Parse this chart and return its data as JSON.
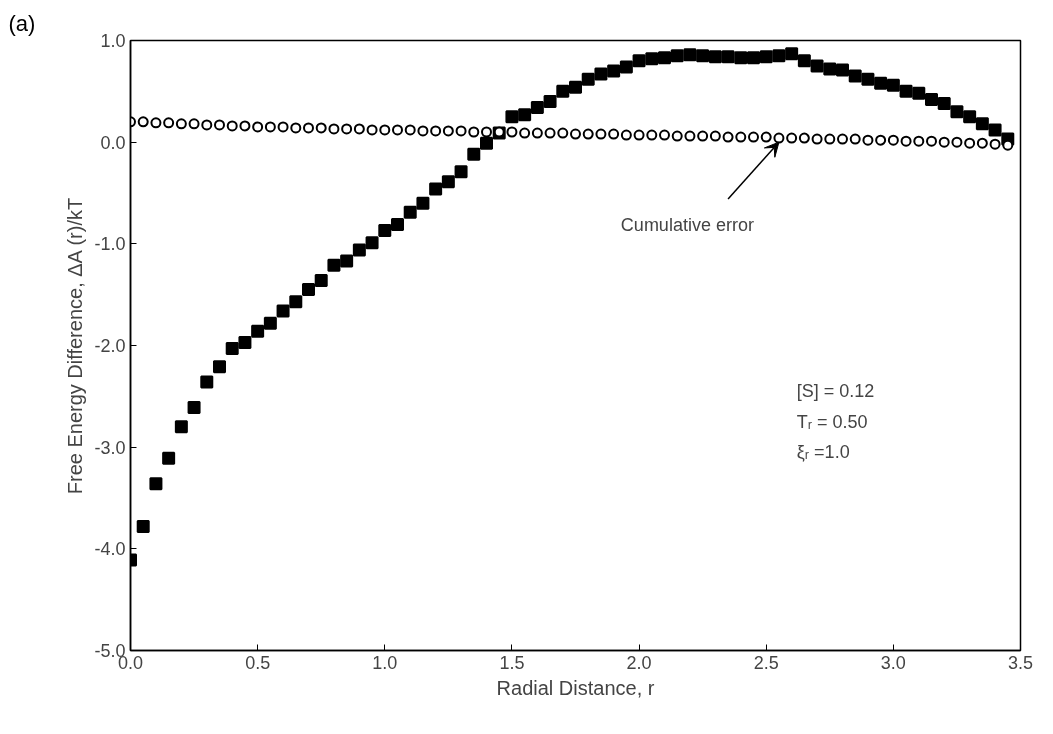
{
  "chart_data": {
    "type": "scatter",
    "xlabel": "Radial Distance, r",
    "ylabel": "Free Energy Difference, ΔA (r)/kT",
    "x": [
      0.0,
      0.05,
      0.1,
      0.15,
      0.2,
      0.25,
      0.3,
      0.35,
      0.4,
      0.45,
      0.5,
      0.55,
      0.6,
      0.65,
      0.7,
      0.75,
      0.8,
      0.85,
      0.9,
      0.95,
      1.0,
      1.05,
      1.1,
      1.15,
      1.2,
      1.25,
      1.3,
      1.35,
      1.4,
      1.45,
      1.5,
      1.55,
      1.6,
      1.65,
      1.7,
      1.75,
      1.8,
      1.85,
      1.9,
      1.95,
      2.0,
      2.05,
      2.1,
      2.15,
      2.2,
      2.25,
      2.3,
      2.35,
      2.4,
      2.45,
      2.5,
      2.55,
      2.6,
      2.65,
      2.7,
      2.75,
      2.8,
      2.85,
      2.9,
      2.95,
      3.0,
      3.05,
      3.1,
      3.15,
      3.2,
      3.25,
      3.3,
      3.35,
      3.4,
      3.45
    ],
    "series": [
      {
        "color": "#000000",
        "marker": "square",
        "values": [
          -4.11,
          -3.78,
          -3.36,
          -3.11,
          -2.8,
          -2.61,
          -2.36,
          -2.21,
          -2.03,
          -1.97,
          -1.86,
          -1.78,
          -1.66,
          -1.57,
          -1.45,
          -1.36,
          -1.21,
          -1.17,
          -1.06,
          -0.99,
          -0.87,
          -0.81,
          -0.69,
          -0.6,
          -0.46,
          -0.39,
          -0.29,
          -0.12,
          -0.01,
          0.09,
          0.25,
          0.27,
          0.34,
          0.4,
          0.5,
          0.54,
          0.62,
          0.67,
          0.7,
          0.74,
          0.8,
          0.82,
          0.83,
          0.85,
          0.86,
          0.85,
          0.84,
          0.84,
          0.83,
          0.83,
          0.84,
          0.85,
          0.87,
          0.8,
          0.75,
          0.72,
          0.71,
          0.65,
          0.62,
          0.58,
          0.56,
          0.5,
          0.48,
          0.42,
          0.38,
          0.3,
          0.25,
          0.18,
          0.12,
          0.03
        ]
      },
      {
        "color": "#000000",
        "marker": "circle",
        "values": [
          0.2,
          0.2,
          0.19,
          0.19,
          0.18,
          0.18,
          0.17,
          0.17,
          0.16,
          0.16,
          0.15,
          0.15,
          0.15,
          0.14,
          0.14,
          0.14,
          0.13,
          0.13,
          0.13,
          0.12,
          0.12,
          0.12,
          0.12,
          0.11,
          0.11,
          0.11,
          0.11,
          0.1,
          0.1,
          0.1,
          0.1,
          0.09,
          0.09,
          0.09,
          0.09,
          0.08,
          0.08,
          0.08,
          0.08,
          0.07,
          0.07,
          0.07,
          0.07,
          0.06,
          0.06,
          0.06,
          0.06,
          0.05,
          0.05,
          0.05,
          0.05,
          0.04,
          0.04,
          0.04,
          0.03,
          0.03,
          0.03,
          0.03,
          0.02,
          0.02,
          0.02,
          0.01,
          0.01,
          0.01,
          0.0,
          0.0,
          -0.01,
          -0.01,
          -0.02,
          -0.03
        ]
      }
    ],
    "xlim": [
      0,
      3.5
    ],
    "xticks": [
      {
        "value": 0,
        "label": "0.0"
      },
      0.5,
      {
        "value": 1,
        "label": "1.0"
      },
      1.5,
      {
        "value": 2,
        "label": "2.0"
      },
      2.5,
      {
        "value": 3,
        "label": "3.0"
      },
      3.5
    ],
    "ylim": [
      -5,
      1
    ],
    "yticks": [
      {
        "value": -5,
        "label": "-5.0"
      },
      {
        "value": -4,
        "label": "-4.0"
      },
      {
        "value": -3,
        "label": "-3.0"
      },
      {
        "value": -2,
        "label": "-2.0"
      },
      {
        "value": -1,
        "label": "-1.0"
      },
      {
        "value": 0,
        "label": "0.0"
      },
      {
        "value": 1,
        "label": "1.0"
      }
    ],
    "grid": false,
    "annotations": [
      "(a)",
      {
        "text": "Cumulative error",
        "x": 2.55,
        "y": 0.04
      },
      "[S] = 0.12",
      "Tᵣ = 0.50",
      "ξᵣ =1.0"
    ]
  }
}
